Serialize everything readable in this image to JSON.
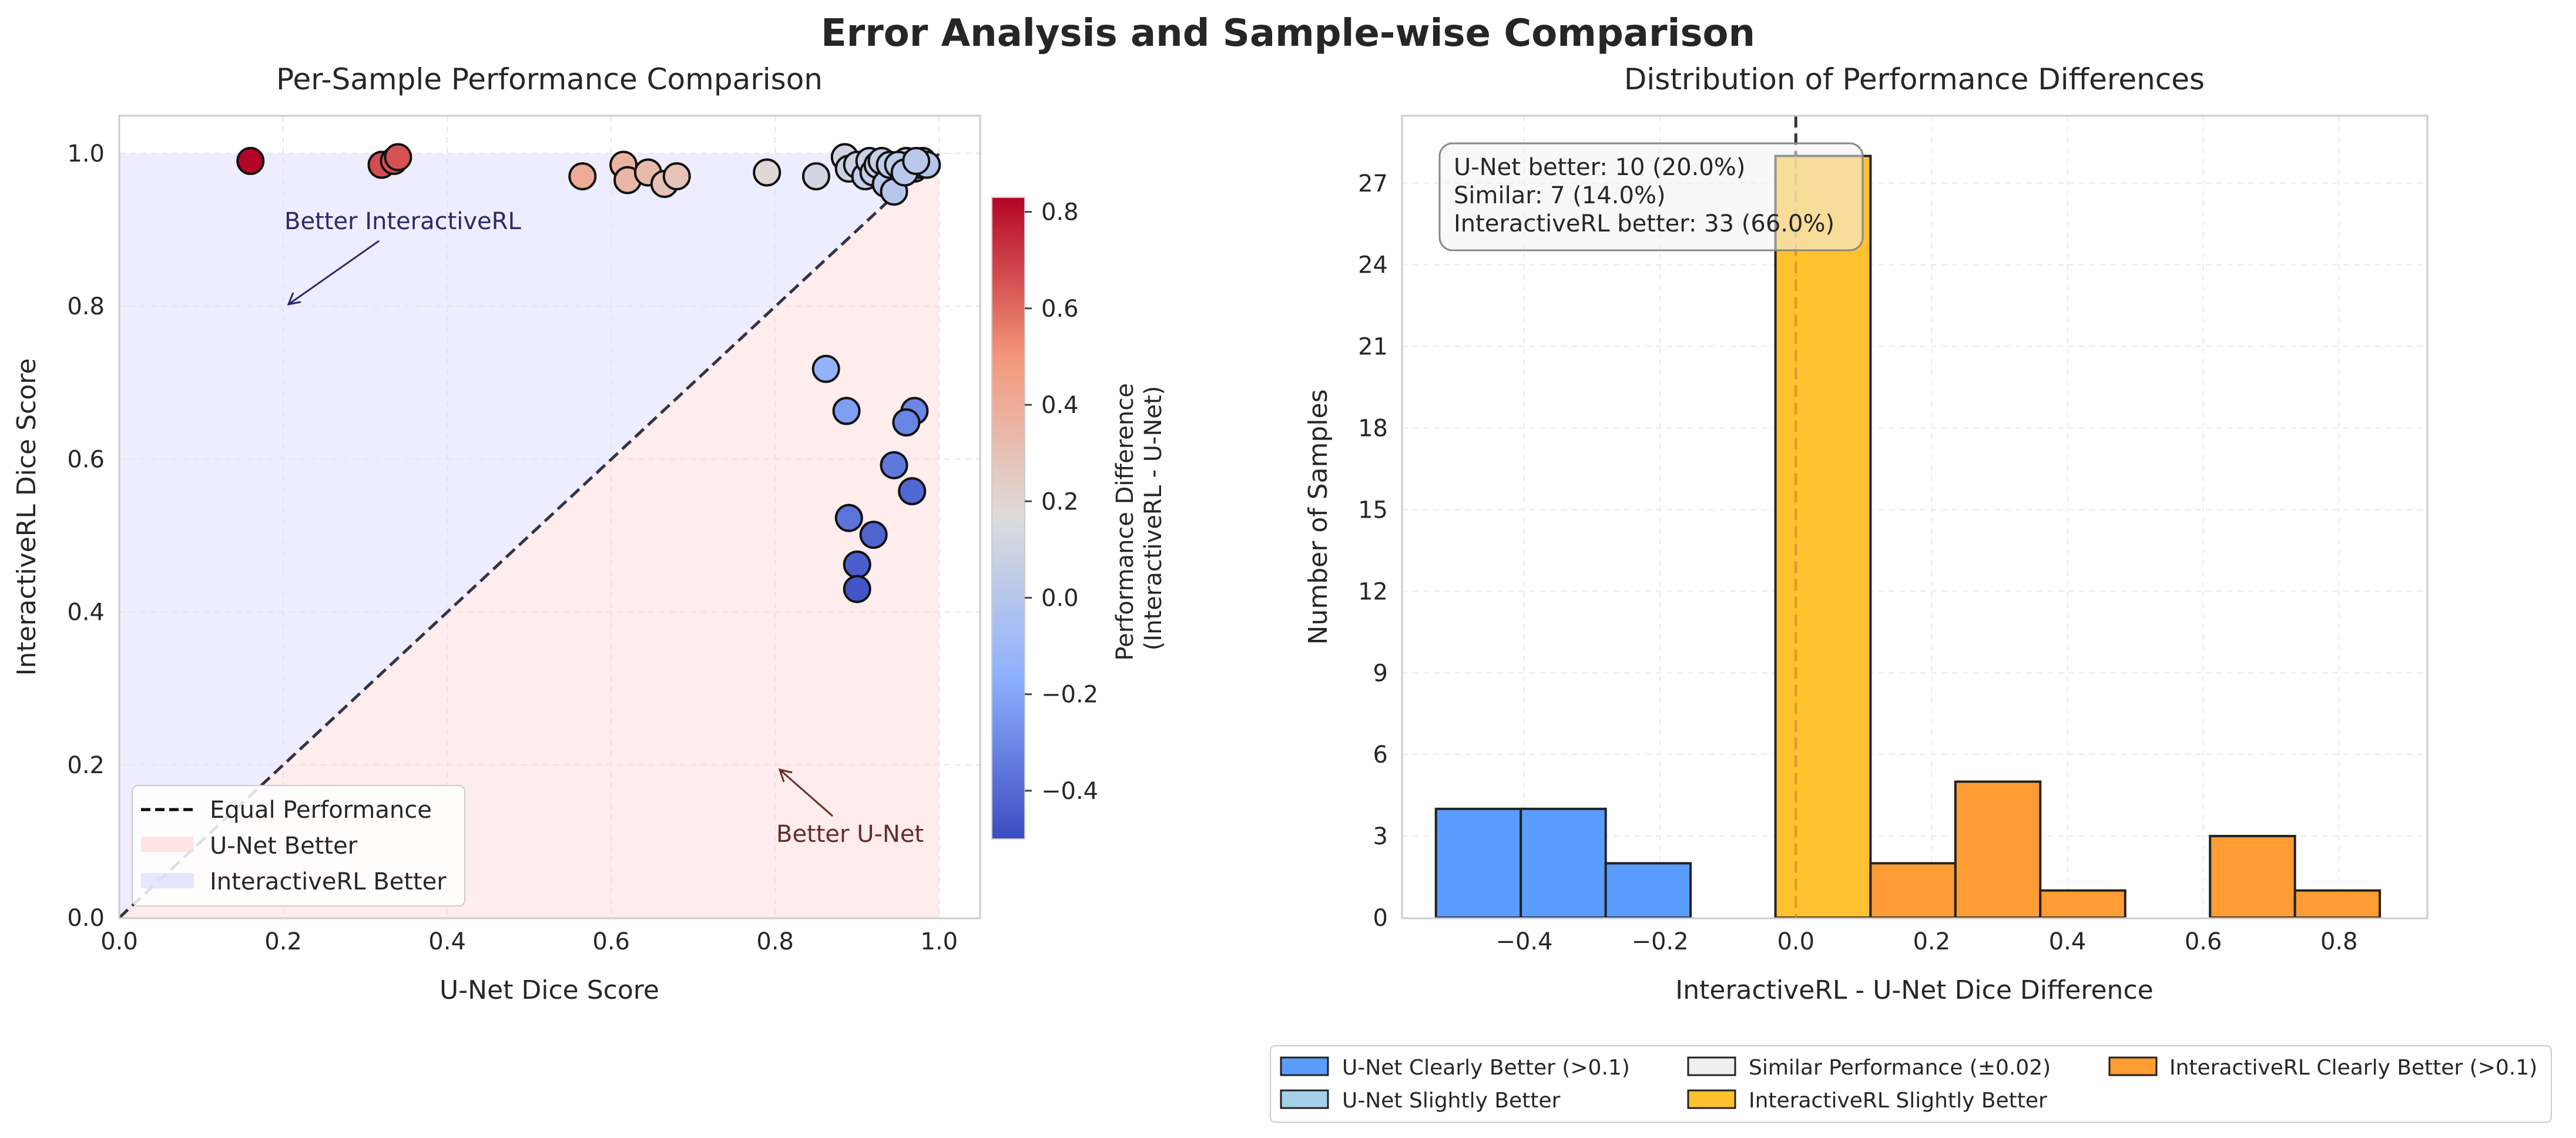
{
  "figure": {
    "suptitle": "Error Analysis and Sample-wise Comparison"
  },
  "chart_data": [
    {
      "type": "scatter",
      "title": "Per-Sample Performance Comparison",
      "xlabel": "U-Net Dice Score",
      "ylabel": "InteractiveRL Dice Score",
      "xlim": [
        0,
        1.05
      ],
      "ylim": [
        0,
        1.05
      ],
      "xticks": [
        "0.0",
        "0.2",
        "0.4",
        "0.6",
        "0.8",
        "1.0"
      ],
      "yticks": [
        "0.0",
        "0.2",
        "0.4",
        "0.6",
        "0.8",
        "1.0"
      ],
      "grid": true,
      "legend_position": "lower-left",
      "legend": [
        {
          "label": "Equal Performance",
          "kind": "dashed-line",
          "color": "#000000"
        },
        {
          "label": "U-Net Better",
          "kind": "patch",
          "color": "#ffd9d9"
        },
        {
          "label": "InteractiveRL Better",
          "kind": "patch",
          "color": "#dcdcff"
        }
      ],
      "annotations": [
        {
          "text": "Better InteractiveRL",
          "color": "#2a2a6a",
          "text_at": [
            0.2,
            0.9
          ],
          "arrow_to": [
            0.2,
            0.8
          ]
        },
        {
          "text": "Better U-Net",
          "color": "#6a2a2a",
          "text_at": [
            0.86,
            0.1
          ],
          "arrow_to": [
            0.8,
            0.2
          ]
        }
      ],
      "colorbar": {
        "label_lines": [
          "Performance Difference",
          "(InteractiveRL - U-Net)"
        ],
        "range": [
          -0.5,
          0.83
        ],
        "ticks": [
          "−0.4",
          "−0.2",
          "0.0",
          "0.2",
          "0.4",
          "0.6",
          "0.8"
        ],
        "tick_values": [
          -0.4,
          -0.2,
          0.0,
          0.2,
          0.4,
          0.6,
          0.8
        ],
        "colormap": "coolwarm"
      },
      "points": [
        {
          "x": 0.16,
          "y": 0.99
        },
        {
          "x": 0.32,
          "y": 0.985
        },
        {
          "x": 0.335,
          "y": 0.99
        },
        {
          "x": 0.34,
          "y": 0.995
        },
        {
          "x": 0.565,
          "y": 0.97
        },
        {
          "x": 0.615,
          "y": 0.985
        },
        {
          "x": 0.62,
          "y": 0.965
        },
        {
          "x": 0.645,
          "y": 0.975
        },
        {
          "x": 0.665,
          "y": 0.96
        },
        {
          "x": 0.68,
          "y": 0.97
        },
        {
          "x": 0.79,
          "y": 0.975
        },
        {
          "x": 0.85,
          "y": 0.97
        },
        {
          "x": 0.885,
          "y": 0.995
        },
        {
          "x": 0.89,
          "y": 0.98
        },
        {
          "x": 0.9,
          "y": 0.985
        },
        {
          "x": 0.91,
          "y": 0.97
        },
        {
          "x": 0.915,
          "y": 0.99
        },
        {
          "x": 0.92,
          "y": 0.975
        },
        {
          "x": 0.925,
          "y": 0.985
        },
        {
          "x": 0.93,
          "y": 0.99
        },
        {
          "x": 0.935,
          "y": 0.96
        },
        {
          "x": 0.94,
          "y": 0.985
        },
        {
          "x": 0.945,
          "y": 0.95
        },
        {
          "x": 0.955,
          "y": 0.985
        },
        {
          "x": 0.96,
          "y": 0.99
        },
        {
          "x": 0.965,
          "y": 0.985
        },
        {
          "x": 0.97,
          "y": 0.98
        },
        {
          "x": 0.975,
          "y": 0.985
        },
        {
          "x": 0.98,
          "y": 0.99
        },
        {
          "x": 0.985,
          "y": 0.985
        },
        {
          "x": 0.95,
          "y": 0.985
        },
        {
          "x": 0.958,
          "y": 0.975
        },
        {
          "x": 0.972,
          "y": 0.99
        },
        {
          "x": 0.862,
          "y": 0.718
        },
        {
          "x": 0.887,
          "y": 0.663
        },
        {
          "x": 0.97,
          "y": 0.663
        },
        {
          "x": 0.96,
          "y": 0.648
        },
        {
          "x": 0.945,
          "y": 0.592
        },
        {
          "x": 0.967,
          "y": 0.558
        },
        {
          "x": 0.89,
          "y": 0.523
        },
        {
          "x": 0.92,
          "y": 0.501
        },
        {
          "x": 0.9,
          "y": 0.462
        },
        {
          "x": 0.9,
          "y": 0.43
        }
      ]
    },
    {
      "type": "bar",
      "title": "Distribution of Performance Differences",
      "xlabel": "InteractiveRL - U-Net Dice Difference",
      "ylabel": "Number of Samples",
      "xlim": [
        -0.58,
        0.93
      ],
      "ylim": [
        0,
        29.5
      ],
      "xticks": [
        "−0.4",
        "−0.2",
        "0.0",
        "0.2",
        "0.4",
        "0.6",
        "0.8"
      ],
      "xtick_values": [
        -0.4,
        -0.2,
        0.0,
        0.2,
        0.4,
        0.6,
        0.8
      ],
      "yticks": [
        "0",
        "3",
        "6",
        "9",
        "12",
        "15",
        "18",
        "21",
        "24",
        "27"
      ],
      "ytick_values": [
        0,
        3,
        6,
        9,
        12,
        15,
        18,
        21,
        24,
        27
      ],
      "grid": true,
      "zero_line": 0.0,
      "bins": [
        {
          "x0": -0.53,
          "x1": -0.405,
          "count": 4,
          "category": "unet_clear"
        },
        {
          "x0": -0.405,
          "x1": -0.28,
          "count": 4,
          "category": "unet_clear"
        },
        {
          "x0": -0.28,
          "x1": -0.155,
          "count": 2,
          "category": "unet_clear"
        },
        {
          "x0": -0.03,
          "x1": 0.11,
          "count": 28,
          "category": "irl_slight"
        },
        {
          "x0": 0.11,
          "x1": 0.235,
          "count": 2,
          "category": "irl_clear"
        },
        {
          "x0": 0.235,
          "x1": 0.36,
          "count": 5,
          "category": "irl_clear"
        },
        {
          "x0": 0.36,
          "x1": 0.485,
          "count": 1,
          "category": "irl_clear"
        },
        {
          "x0": 0.61,
          "x1": 0.735,
          "count": 3,
          "category": "irl_clear"
        },
        {
          "x0": 0.735,
          "x1": 0.86,
          "count": 1,
          "category": "irl_clear"
        }
      ],
      "stats_box": [
        "U-Net better: 10 (20.0%)",
        "Similar: 7 (14.0%)",
        "InteractiveRL better: 33 (66.0%)"
      ],
      "legend_position": "below",
      "legend": [
        {
          "key": "unet_clear",
          "label": "U-Net Clearly Better (>0.1)",
          "color": "#5b9cff"
        },
        {
          "key": "unet_slight",
          "label": "U-Net Slightly Better",
          "color": "#a6d0e8"
        },
        {
          "key": "similar",
          "label": "Similar Performance (±0.02)",
          "color": "#efefef"
        },
        {
          "key": "irl_slight",
          "label": "InteractiveRL Slightly Better",
          "color": "#ffc12e"
        },
        {
          "key": "irl_clear",
          "label": "InteractiveRL Clearly Better (>0.1)",
          "color": "#ff9c33"
        }
      ]
    }
  ]
}
